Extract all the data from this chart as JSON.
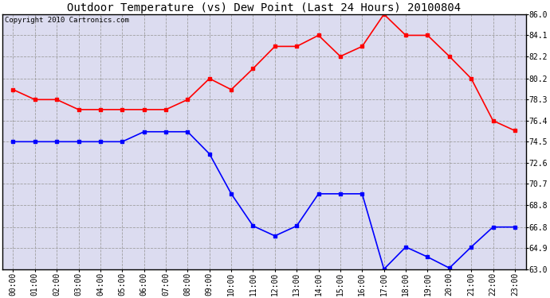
{
  "title": "Outdoor Temperature (vs) Dew Point (Last 24 Hours) 20100804",
  "copyright": "Copyright 2010 Cartronics.com",
  "hours": [
    "00:00",
    "01:00",
    "02:00",
    "03:00",
    "04:00",
    "05:00",
    "06:00",
    "07:00",
    "08:00",
    "09:00",
    "10:00",
    "11:00",
    "12:00",
    "13:00",
    "14:00",
    "15:00",
    "16:00",
    "17:00",
    "18:00",
    "19:00",
    "20:00",
    "21:00",
    "22:00",
    "23:00"
  ],
  "temp": [
    79.2,
    78.3,
    78.3,
    77.4,
    77.4,
    77.4,
    77.4,
    77.4,
    78.3,
    80.2,
    79.2,
    81.1,
    83.1,
    83.1,
    84.1,
    82.2,
    83.1,
    86.0,
    84.1,
    84.1,
    82.2,
    80.2,
    76.4,
    75.5
  ],
  "dew": [
    74.5,
    74.5,
    74.5,
    74.5,
    74.5,
    74.5,
    75.4,
    75.4,
    75.4,
    73.4,
    69.8,
    66.9,
    66.0,
    66.9,
    69.8,
    69.8,
    69.8,
    63.0,
    65.0,
    64.1,
    63.1,
    65.0,
    66.8,
    66.8
  ],
  "temp_color": "#FF0000",
  "dew_color": "#0000FF",
  "bg_color": "#FFFFFF",
  "plot_bg_color": "#DCDCF0",
  "grid_color": "#A0A0A0",
  "ylim_min": 63.0,
  "ylim_max": 86.0,
  "ytick_labels": [
    "63.0",
    "64.9",
    "66.8",
    "68.8",
    "70.7",
    "72.6",
    "74.5",
    "76.4",
    "78.3",
    "80.2",
    "82.2",
    "84.1",
    "86.0"
  ],
  "ytick_vals": [
    63.0,
    64.9,
    66.8,
    68.8,
    70.7,
    72.6,
    74.5,
    76.4,
    78.3,
    80.2,
    82.2,
    84.1,
    86.0
  ],
  "marker": "s",
  "markersize": 2.5,
  "linewidth": 1.2,
  "title_fontsize": 10,
  "tick_fontsize": 7,
  "copyright_fontsize": 6.5
}
